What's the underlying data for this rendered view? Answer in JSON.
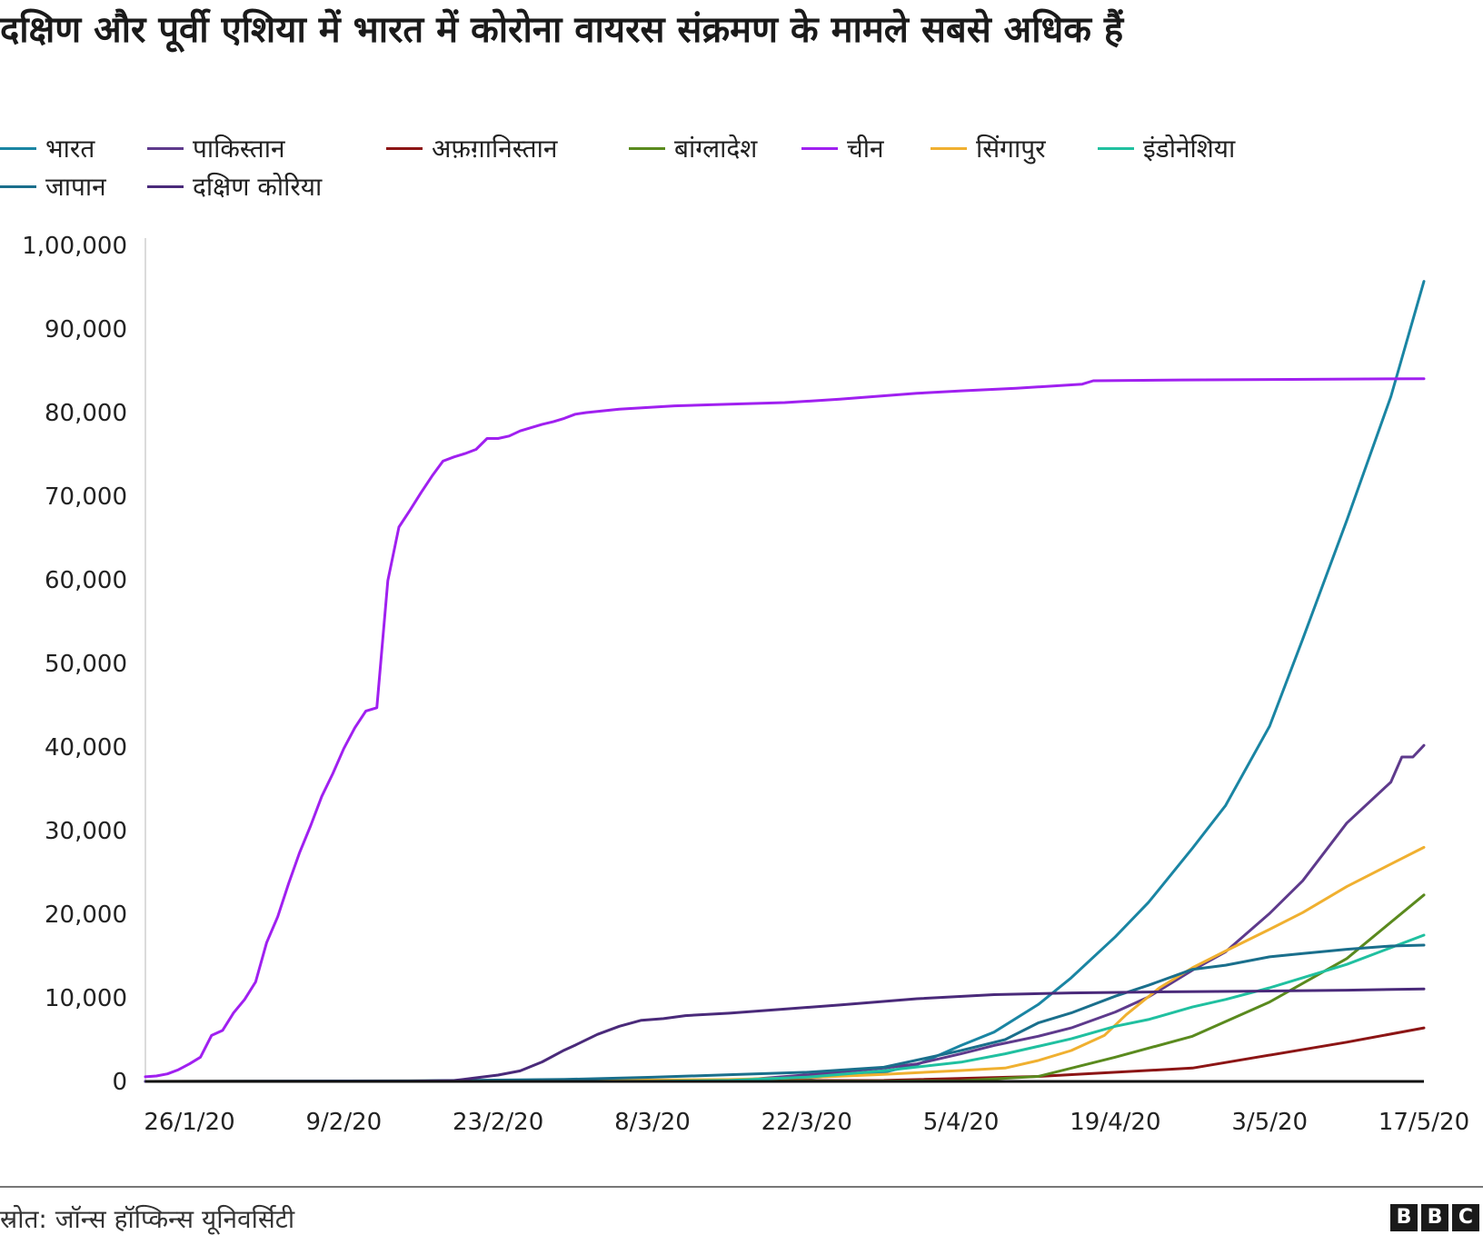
{
  "title": "दक्षिण और पूर्वी एशिया में भारत में कोरोना वायरस संक्रमण के मामले सबसे अधिक हैं",
  "source": "स्रोत: जॉन्स हॉप्किन्स यूनिवर्सिटी",
  "logo": [
    "B",
    "B",
    "C"
  ],
  "chart_data": {
    "type": "line",
    "title": "दक्षिण और पूर्वी एशिया में भारत में कोरोना वायरस संक्रमण के मामले सबसे अधिक हैं",
    "xlabel": "",
    "ylabel": "",
    "x_start": "22/1/20",
    "x_end": "17/5/20",
    "ylim": [
      0,
      100000
    ],
    "y_ticks": [
      0,
      10000,
      20000,
      30000,
      40000,
      50000,
      60000,
      70000,
      80000,
      90000,
      100000
    ],
    "y_tick_labels": [
      "0",
      "10,000",
      "20,000",
      "30,000",
      "40,000",
      "50,000",
      "60,000",
      "70,000",
      "80,000",
      "90,000",
      "1,00,000"
    ],
    "x_tick_labels": [
      "26/1/20",
      "9/2/20",
      "23/2/20",
      "8/3/20",
      "22/3/20",
      "5/4/20",
      "19/4/20",
      "3/5/20",
      "17/5/20"
    ],
    "x_tick_dates": [
      "26/1/20",
      "9/2/20",
      "23/2/20",
      "8/3/20",
      "22/3/20",
      "5/4/20",
      "19/4/20",
      "3/5/20",
      "17/5/20"
    ],
    "grid": false,
    "legend_position": "top-left",
    "series": [
      {
        "name": "भारत",
        "color": "#1a85a3",
        "points": [
          [
            "22/1/20",
            0
          ],
          [
            "1/3/20",
            3
          ],
          [
            "15/3/20",
            110
          ],
          [
            "22/3/20",
            400
          ],
          [
            "29/3/20",
            1100
          ],
          [
            "1/4/20",
            2000
          ],
          [
            "5/4/20",
            4300
          ],
          [
            "8/4/20",
            5900
          ],
          [
            "12/4/20",
            9200
          ],
          [
            "15/4/20",
            12400
          ],
          [
            "19/4/20",
            17300
          ],
          [
            "22/4/20",
            21400
          ],
          [
            "26/4/20",
            27900
          ],
          [
            "29/4/20",
            33000
          ],
          [
            "3/5/20",
            42500
          ],
          [
            "6/5/20",
            52900
          ],
          [
            "10/5/20",
            67100
          ],
          [
            "14/5/20",
            81900
          ],
          [
            "17/5/20",
            95700
          ]
        ]
      },
      {
        "name": "पाकिस्तान",
        "color": "#5e3a8c",
        "points": [
          [
            "22/1/20",
            0
          ],
          [
            "1/3/20",
            4
          ],
          [
            "15/3/20",
            50
          ],
          [
            "22/3/20",
            780
          ],
          [
            "29/3/20",
            1600
          ],
          [
            "1/4/20",
            2100
          ],
          [
            "5/4/20",
            3300
          ],
          [
            "8/4/20",
            4300
          ],
          [
            "12/4/20",
            5400
          ],
          [
            "15/4/20",
            6400
          ],
          [
            "19/4/20",
            8300
          ],
          [
            "22/4/20",
            10100
          ],
          [
            "26/4/20",
            13300
          ],
          [
            "29/4/20",
            15500
          ],
          [
            "3/5/20",
            20100
          ],
          [
            "6/5/20",
            24000
          ],
          [
            "10/5/20",
            30900
          ],
          [
            "14/5/20",
            35800
          ],
          [
            "15/5/20",
            38800
          ],
          [
            "16/5/20",
            38800
          ],
          [
            "17/5/20",
            40200
          ]
        ]
      },
      {
        "name": "अफ़ग़ानिस्तान",
        "color": "#8c1515",
        "points": [
          [
            "22/1/20",
            0
          ],
          [
            "29/3/20",
            120
          ],
          [
            "12/4/20",
            600
          ],
          [
            "26/4/20",
            1600
          ],
          [
            "10/5/20",
            4700
          ],
          [
            "17/5/20",
            6400
          ]
        ]
      },
      {
        "name": "बांग्लादेश",
        "color": "#5a8a1e",
        "points": [
          [
            "22/1/20",
            0
          ],
          [
            "29/3/20",
            48
          ],
          [
            "5/4/20",
            90
          ],
          [
            "12/4/20",
            600
          ],
          [
            "19/4/20",
            2900
          ],
          [
            "26/4/20",
            5400
          ],
          [
            "3/5/20",
            9500
          ],
          [
            "10/5/20",
            14700
          ],
          [
            "17/5/20",
            22300
          ]
        ]
      },
      {
        "name": "चीन",
        "color": "#a020f0",
        "points": [
          [
            "22/1/20",
            550
          ],
          [
            "23/1/20",
            650
          ],
          [
            "24/1/20",
            900
          ],
          [
            "25/1/20",
            1400
          ],
          [
            "26/1/20",
            2100
          ],
          [
            "27/1/20",
            2900
          ],
          [
            "28/1/20",
            5500
          ],
          [
            "29/1/20",
            6100
          ],
          [
            "30/1/20",
            8200
          ],
          [
            "31/1/20",
            9800
          ],
          [
            "1/2/20",
            11900
          ],
          [
            "2/2/20",
            16600
          ],
          [
            "3/2/20",
            19700
          ],
          [
            "4/2/20",
            23700
          ],
          [
            "5/2/20",
            27400
          ],
          [
            "6/2/20",
            30600
          ],
          [
            "7/2/20",
            34100
          ],
          [
            "8/2/20",
            36800
          ],
          [
            "9/2/20",
            39800
          ],
          [
            "10/2/20",
            42300
          ],
          [
            "11/2/20",
            44300
          ],
          [
            "12/2/20",
            44700
          ],
          [
            "13/2/20",
            59900
          ],
          [
            "14/2/20",
            66300
          ],
          [
            "15/2/20",
            68300
          ],
          [
            "16/2/20",
            70400
          ],
          [
            "17/2/20",
            72400
          ],
          [
            "18/2/20",
            74200
          ],
          [
            "19/2/20",
            74700
          ],
          [
            "20/2/20",
            75100
          ],
          [
            "21/2/20",
            75600
          ],
          [
            "22/2/20",
            76900
          ],
          [
            "23/2/20",
            76900
          ],
          [
            "24/2/20",
            77200
          ],
          [
            "25/2/20",
            77800
          ],
          [
            "26/2/20",
            78200
          ],
          [
            "27/2/20",
            78600
          ],
          [
            "28/2/20",
            78900
          ],
          [
            "29/2/20",
            79300
          ],
          [
            "1/3/20",
            79800
          ],
          [
            "2/3/20",
            80000
          ],
          [
            "5/3/20",
            80400
          ],
          [
            "10/3/20",
            80800
          ],
          [
            "15/3/20",
            81000
          ],
          [
            "20/3/20",
            81200
          ],
          [
            "25/3/20",
            81600
          ],
          [
            "1/4/20",
            82300
          ],
          [
            "5/4/20",
            82600
          ],
          [
            "10/4/20",
            82900
          ],
          [
            "16/4/20",
            83400
          ],
          [
            "17/4/20",
            83800
          ],
          [
            "25/4/20",
            83900
          ],
          [
            "5/5/20",
            83970
          ],
          [
            "17/5/20",
            84050
          ]
        ]
      },
      {
        "name": "सिंगापुर",
        "color": "#f0b030",
        "points": [
          [
            "22/1/20",
            0
          ],
          [
            "1/3/20",
            106
          ],
          [
            "15/3/20",
            226
          ],
          [
            "22/3/20",
            455
          ],
          [
            "29/3/20",
            844
          ],
          [
            "5/4/20",
            1300
          ],
          [
            "9/4/20",
            1600
          ],
          [
            "12/4/20",
            2500
          ],
          [
            "15/4/20",
            3700
          ],
          [
            "18/4/20",
            5500
          ],
          [
            "20/4/20",
            8000
          ],
          [
            "23/4/20",
            11200
          ],
          [
            "26/4/20",
            13600
          ],
          [
            "29/4/20",
            15600
          ],
          [
            "3/5/20",
            18200
          ],
          [
            "6/5/20",
            20200
          ],
          [
            "10/5/20",
            23300
          ],
          [
            "14/5/20",
            26000
          ],
          [
            "17/5/20",
            28000
          ]
        ]
      },
      {
        "name": "इंडोनेशिया",
        "color": "#20c0a0",
        "points": [
          [
            "22/1/20",
            0
          ],
          [
            "8/3/20",
            6
          ],
          [
            "15/3/20",
            117
          ],
          [
            "22/3/20",
            514
          ],
          [
            "29/3/20",
            1285
          ],
          [
            "5/4/20",
            2300
          ],
          [
            "9/4/20",
            3300
          ],
          [
            "12/4/20",
            4200
          ],
          [
            "15/4/20",
            5100
          ],
          [
            "19/4/20",
            6600
          ],
          [
            "22/4/20",
            7400
          ],
          [
            "26/4/20",
            8900
          ],
          [
            "29/4/20",
            9800
          ],
          [
            "3/5/20",
            11200
          ],
          [
            "6/5/20",
            12400
          ],
          [
            "10/5/20",
            14000
          ],
          [
            "14/5/20",
            16000
          ],
          [
            "17/5/20",
            17500
          ]
        ]
      },
      {
        "name": "जापान",
        "color": "#1a6f8c",
        "points": [
          [
            "22/1/20",
            2
          ],
          [
            "15/2/20",
            60
          ],
          [
            "29/2/20",
            240
          ],
          [
            "8/3/20",
            500
          ],
          [
            "15/3/20",
            800
          ],
          [
            "22/3/20",
            1100
          ],
          [
            "29/3/20",
            1700
          ],
          [
            "5/4/20",
            3700
          ],
          [
            "9/4/20",
            5000
          ],
          [
            "12/4/20",
            7000
          ],
          [
            "15/4/20",
            8200
          ],
          [
            "19/4/20",
            10200
          ],
          [
            "22/4/20",
            11500
          ],
          [
            "26/4/20",
            13400
          ],
          [
            "29/4/20",
            13900
          ],
          [
            "3/5/20",
            14900
          ],
          [
            "6/5/20",
            15300
          ],
          [
            "10/5/20",
            15800
          ],
          [
            "14/5/20",
            16200
          ],
          [
            "17/5/20",
            16300
          ]
        ]
      },
      {
        "name": "दक्षिण कोरिया",
        "color": "#4a2a7a",
        "points": [
          [
            "22/1/20",
            1
          ],
          [
            "15/2/20",
            28
          ],
          [
            "19/2/20",
            104
          ],
          [
            "21/2/20",
            433
          ],
          [
            "23/2/20",
            763
          ],
          [
            "25/2/20",
            1261
          ],
          [
            "27/2/20",
            2337
          ],
          [
            "29/2/20",
            3736
          ],
          [
            "1/3/20",
            4335
          ],
          [
            "3/3/20",
            5621
          ],
          [
            "5/3/20",
            6593
          ],
          [
            "7/3/20",
            7313
          ],
          [
            "9/3/20",
            7513
          ],
          [
            "11/3/20",
            7869
          ],
          [
            "15/3/20",
            8162
          ],
          [
            "20/3/20",
            8652
          ],
          [
            "25/3/20",
            9137
          ],
          [
            "1/4/20",
            9887
          ],
          [
            "8/4/20",
            10384
          ],
          [
            "15/4/20",
            10591
          ],
          [
            "22/4/20",
            10694
          ],
          [
            "1/5/20",
            10780
          ],
          [
            "10/5/20",
            10909
          ],
          [
            "17/5/20",
            11065
          ]
        ]
      }
    ]
  }
}
